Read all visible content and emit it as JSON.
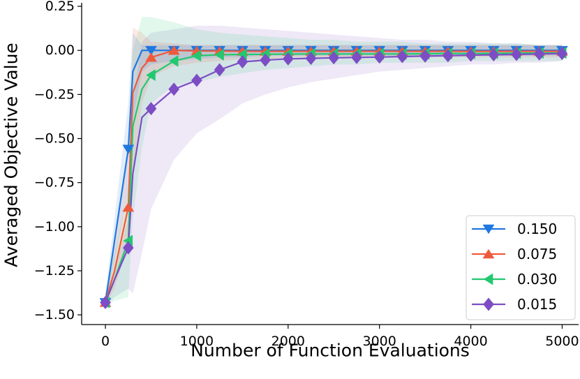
{
  "chart_data": {
    "type": "line",
    "title": "",
    "xlabel": "Number of Function Evaluations",
    "ylabel": "Averaged Objective Value",
    "xlim": [
      -260,
      5180
    ],
    "ylim": [
      -1.555,
      0.27
    ],
    "xticks": [
      0,
      1000,
      2000,
      3000,
      4000,
      5000
    ],
    "xtick_labels": [
      "0",
      "1000",
      "2000",
      "3000",
      "4000",
      "5000"
    ],
    "yticks": [
      0.25,
      0.0,
      -0.25,
      -0.5,
      -0.75,
      -1.0,
      -1.25,
      -1.5
    ],
    "ytick_labels": [
      "0.25",
      "0.00",
      "−0.25",
      "−0.50",
      "−0.75",
      "−1.00",
      "−1.25",
      "−1.50"
    ],
    "grid": false,
    "legend_position": "bottom-right",
    "series": [
      {
        "name": "0.150",
        "color": "#1f77e0",
        "marker": "triangle-down",
        "x": [
          0,
          100,
          250,
          300,
          400,
          500,
          750,
          1000,
          1250,
          1500,
          1750,
          2000,
          2250,
          2500,
          2750,
          3000,
          3250,
          3500,
          3750,
          4000,
          4250,
          4500,
          4750,
          5000
        ],
        "y": [
          -1.43,
          -1.08,
          -0.56,
          -0.12,
          0.0,
          0.0,
          0.0,
          0.0,
          0.0,
          0.0,
          0.0,
          0.0,
          0.0,
          0.0,
          0.0,
          0.0,
          0.0,
          0.0,
          0.0,
          0.0,
          0.0,
          0.0,
          0.0,
          0.0
        ],
        "marker_indices": [
          0,
          2,
          5,
          6,
          7,
          8,
          9,
          10,
          11,
          12,
          13,
          14,
          15,
          16,
          17,
          18,
          19,
          20,
          21,
          22,
          23
        ],
        "band_upper": [
          -1.38,
          -0.95,
          -0.3,
          0.1,
          0.03,
          0.03,
          0.03,
          0.03,
          0.03,
          0.03,
          0.03,
          0.03,
          0.03,
          0.03,
          0.03,
          0.03,
          0.03,
          0.03,
          0.03,
          0.03,
          0.03,
          0.03,
          0.03,
          0.03
        ],
        "band_lower": [
          -1.45,
          -1.2,
          -0.8,
          -0.4,
          -0.12,
          -0.08,
          -0.06,
          -0.05,
          -0.04,
          -0.04,
          -0.03,
          -0.03,
          -0.03,
          -0.03,
          -0.03,
          -0.03,
          -0.03,
          -0.03,
          -0.03,
          -0.03,
          -0.03,
          -0.03,
          -0.03,
          -0.03
        ]
      },
      {
        "name": "0.075",
        "color": "#ee5a3c",
        "marker": "triangle-up",
        "x": [
          0,
          100,
          250,
          300,
          400,
          500,
          750,
          1000,
          1250,
          1500,
          1750,
          2000,
          2250,
          2500,
          2750,
          3000,
          3250,
          3500,
          3750,
          4000,
          4250,
          4500,
          4750,
          5000
        ],
        "y": [
          -1.43,
          -1.25,
          -0.89,
          -0.24,
          -0.1,
          -0.04,
          0.0,
          -0.003,
          -0.004,
          -0.005,
          -0.005,
          -0.005,
          -0.005,
          -0.005,
          -0.005,
          -0.005,
          -0.005,
          -0.005,
          -0.005,
          -0.005,
          -0.005,
          -0.005,
          -0.005,
          -0.005
        ],
        "marker_indices": [
          0,
          2,
          5,
          6,
          7,
          8,
          9,
          10,
          11,
          12,
          13,
          14,
          15,
          16,
          17,
          18,
          19,
          20,
          21,
          22,
          23
        ],
        "band_upper": [
          -1.38,
          -1.1,
          -0.6,
          0.13,
          0.1,
          0.05,
          0.04,
          0.03,
          0.03,
          0.03,
          0.03,
          0.03,
          0.03,
          0.03,
          0.03,
          0.03,
          0.03,
          0.03,
          0.03,
          0.03,
          0.03,
          0.03,
          0.03,
          0.03
        ],
        "band_lower": [
          -1.45,
          -1.35,
          -1.1,
          -0.7,
          -0.3,
          -0.15,
          -0.09,
          -0.07,
          -0.06,
          -0.05,
          -0.05,
          -0.04,
          -0.04,
          -0.04,
          -0.04,
          -0.04,
          -0.04,
          -0.04,
          -0.04,
          -0.04,
          -0.04,
          -0.04,
          -0.04,
          -0.04
        ]
      },
      {
        "name": "0.030",
        "color": "#22c870",
        "marker": "triangle-left",
        "x": [
          0,
          100,
          250,
          300,
          400,
          500,
          750,
          1000,
          1250,
          1500,
          1750,
          2000,
          2250,
          2500,
          2750,
          3000,
          3250,
          3500,
          3750,
          4000,
          4250,
          4500,
          4750,
          5000
        ],
        "y": [
          -1.43,
          -1.3,
          -1.08,
          -0.43,
          -0.22,
          -0.14,
          -0.06,
          -0.03,
          -0.025,
          -0.023,
          -0.022,
          -0.021,
          -0.02,
          -0.02,
          -0.02,
          -0.02,
          -0.02,
          -0.019,
          -0.018,
          -0.018,
          -0.017,
          -0.016,
          -0.015,
          -0.015
        ],
        "marker_indices": [
          0,
          2,
          5,
          6,
          7,
          8,
          9,
          10,
          11,
          12,
          13,
          14,
          15,
          16,
          17,
          18,
          19,
          20,
          21,
          22,
          23
        ],
        "band_upper": [
          -1.38,
          -1.15,
          -0.8,
          0.0,
          0.19,
          0.19,
          0.16,
          0.12,
          0.1,
          0.09,
          0.08,
          0.07,
          0.06,
          0.06,
          0.05,
          0.05,
          0.05,
          0.04,
          0.04,
          0.04,
          0.04,
          0.04,
          0.03,
          0.03
        ],
        "band_lower": [
          -1.45,
          -1.42,
          -1.4,
          -0.95,
          -0.55,
          -0.3,
          -0.2,
          -0.18,
          -0.15,
          -0.13,
          -0.11,
          -0.1,
          -0.09,
          -0.08,
          -0.08,
          -0.07,
          -0.07,
          -0.07,
          -0.07,
          -0.06,
          -0.06,
          -0.06,
          -0.06,
          -0.06
        ]
      },
      {
        "name": "0.015",
        "color": "#7c4dc4",
        "marker": "diamond",
        "x": [
          0,
          100,
          250,
          300,
          400,
          500,
          750,
          1000,
          1250,
          1500,
          1750,
          2000,
          2250,
          2500,
          2750,
          3000,
          3250,
          3500,
          3750,
          4000,
          4250,
          4500,
          4750,
          5000
        ],
        "y": [
          -1.43,
          -1.3,
          -1.12,
          -0.7,
          -0.38,
          -0.33,
          -0.22,
          -0.17,
          -0.11,
          -0.065,
          -0.055,
          -0.048,
          -0.045,
          -0.042,
          -0.04,
          -0.038,
          -0.035,
          -0.032,
          -0.03,
          -0.027,
          -0.025,
          -0.023,
          -0.02,
          -0.018
        ],
        "marker_indices": [
          0,
          2,
          5,
          6,
          7,
          8,
          9,
          10,
          11,
          12,
          13,
          14,
          15,
          16,
          17,
          18,
          19,
          20,
          21,
          22,
          23
        ],
        "band_upper": [
          -1.38,
          -1.25,
          -0.95,
          -0.3,
          0.05,
          0.1,
          0.12,
          0.14,
          0.14,
          0.13,
          0.12,
          0.11,
          0.1,
          0.09,
          0.08,
          0.07,
          0.06,
          0.06,
          0.05,
          0.05,
          0.04,
          0.04,
          0.03,
          0.03
        ],
        "band_lower": [
          -1.45,
          -1.4,
          -1.35,
          -1.38,
          -1.15,
          -0.9,
          -0.62,
          -0.47,
          -0.39,
          -0.3,
          -0.25,
          -0.21,
          -0.18,
          -0.16,
          -0.14,
          -0.12,
          -0.11,
          -0.1,
          -0.09,
          -0.08,
          -0.08,
          -0.07,
          -0.07,
          -0.06
        ]
      }
    ]
  }
}
